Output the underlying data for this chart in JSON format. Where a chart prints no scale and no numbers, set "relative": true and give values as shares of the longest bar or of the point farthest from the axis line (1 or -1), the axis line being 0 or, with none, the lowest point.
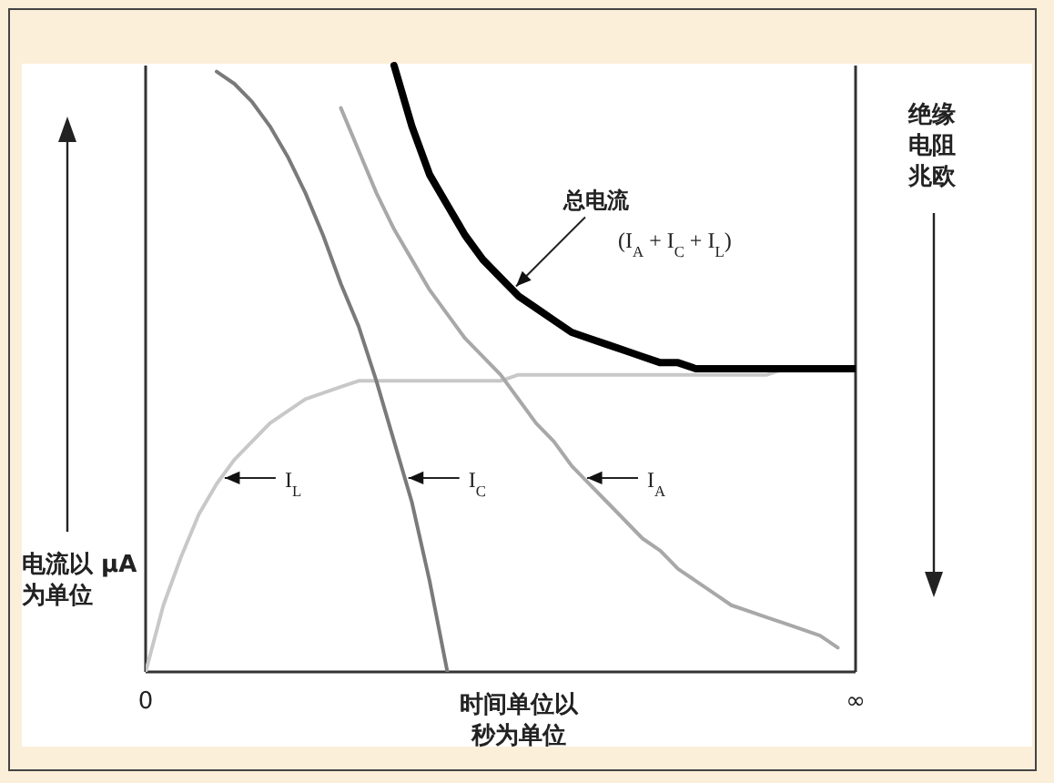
{
  "chart_data": {
    "type": "line",
    "relative": true,
    "categories": [
      "0",
      null,
      null,
      null,
      null,
      null,
      null,
      null,
      null,
      null,
      null,
      null,
      null,
      null,
      null,
      null,
      null,
      null,
      null,
      null,
      null,
      null,
      null,
      null,
      null,
      null,
      null,
      null,
      null,
      null,
      null,
      null,
      null,
      null,
      null,
      null,
      null,
      null,
      null,
      null,
      "∞"
    ],
    "xlabel": "时间单位以秒为单位",
    "ylabel": "电流以 μA为单位",
    "y2label": "绝缘电阻兆欧",
    "series": [
      {
        "color": "#c8c8c8",
        "values": [
          0,
          0.11,
          0.19,
          0.26,
          0.31,
          0.35,
          0.38,
          0.41,
          0.43,
          0.45,
          0.46,
          0.47,
          0.48,
          0.48,
          0.48,
          0.48,
          0.48,
          0.48,
          0.48,
          0.48,
          0.48,
          0.49,
          0.49,
          0.49,
          0.49,
          0.49,
          0.49,
          0.49,
          0.49,
          0.49,
          0.49,
          0.49,
          0.49,
          0.49,
          0.49,
          0.49,
          0.5,
          null,
          null,
          null,
          null
        ]
      },
      {
        "color": "#7a7a7a",
        "values": [
          null,
          null,
          null,
          null,
          0.99,
          0.97,
          0.94,
          0.9,
          0.85,
          0.79,
          0.72,
          0.64,
          0.57,
          0.48,
          0.38,
          0.28,
          0.15,
          0,
          null,
          null,
          null,
          null,
          null,
          null,
          null,
          null,
          null,
          null,
          null,
          null,
          null,
          null,
          null,
          null,
          null,
          null,
          null,
          null,
          null,
          null,
          null
        ]
      },
      {
        "color": "#a8a8a8",
        "values": [
          null,
          null,
          null,
          null,
          null,
          null,
          null,
          null,
          null,
          null,
          null,
          0.93,
          0.86,
          0.79,
          0.73,
          0.68,
          0.63,
          0.59,
          0.55,
          0.52,
          0.49,
          0.45,
          0.41,
          0.38,
          0.34,
          0.31,
          0.28,
          0.25,
          0.22,
          0.2,
          0.17,
          0.15,
          0.13,
          0.11,
          0.1,
          0.09,
          0.08,
          0.07,
          0.06,
          0.04,
          null
        ]
      },
      {
        "color": "#000000",
        "values": [
          null,
          null,
          null,
          null,
          null,
          null,
          null,
          null,
          null,
          null,
          null,
          null,
          null,
          null,
          1,
          0.9,
          0.82,
          0.77,
          0.72,
          0.68,
          0.65,
          0.62,
          0.6,
          0.58,
          0.56,
          0.55,
          0.54,
          0.53,
          0.52,
          0.51,
          0.51,
          0.5,
          0.5,
          0.5,
          0.5,
          0.5,
          0.5,
          0.5,
          0.5,
          0.5,
          0.5
        ]
      }
    ],
    "annotations": [
      "总电流",
      "(I$_{A}$ + I$_{C}$ + I$_{L}$)",
      "I$_{L}$",
      "I$_{C}$",
      "I$_{A}$"
    ]
  }
}
